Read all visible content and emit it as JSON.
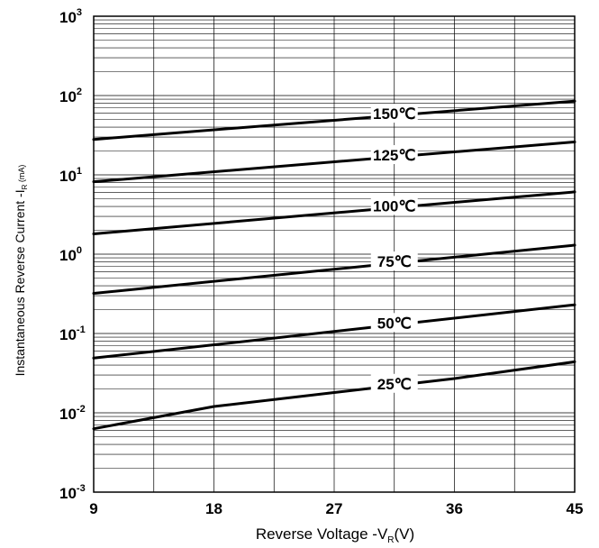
{
  "chart_data": {
    "type": "line",
    "xlabel": {
      "main": "Reverse  Voltage -V",
      "sub": "R",
      "tail": "(V)"
    },
    "ylabel": {
      "main": "Instantaneous Reverse Current -I",
      "sub": "R",
      "tail": " (mA)"
    },
    "xlim": [
      9,
      45
    ],
    "ylim": [
      0.001,
      1000
    ],
    "y_scale": "log",
    "grid": true,
    "x_ticks": [
      {
        "value": 9,
        "label": "9"
      },
      {
        "value": 18,
        "label": "18"
      },
      {
        "value": 27,
        "label": "27"
      },
      {
        "value": 36,
        "label": "36"
      },
      {
        "value": 45,
        "label": "45"
      }
    ],
    "x_minor_grid": [
      13.5,
      22.5,
      31.5,
      40.5
    ],
    "y_ticks": [
      {
        "value": 0.001,
        "base": "10",
        "exp": "-3"
      },
      {
        "value": 0.01,
        "base": "10",
        "exp": "-2"
      },
      {
        "value": 0.1,
        "base": "10",
        "exp": "-1"
      },
      {
        "value": 1,
        "base": "10",
        "exp": "0"
      },
      {
        "value": 10,
        "base": "10",
        "exp": "1"
      },
      {
        "value": 100,
        "base": "10",
        "exp": "2"
      },
      {
        "value": 1000,
        "base": "10",
        "exp": "3"
      }
    ],
    "series": [
      {
        "name": "150℃",
        "x": [
          9,
          45
        ],
        "y": [
          28,
          85
        ],
        "label_x": 31.5
      },
      {
        "name": "125℃",
        "x": [
          9,
          45
        ],
        "y": [
          8.2,
          26
        ],
        "label_x": 31.5
      },
      {
        "name": "100℃",
        "x": [
          9,
          45
        ],
        "y": [
          1.8,
          6.1
        ],
        "label_x": 31.5
      },
      {
        "name": "75℃",
        "x": [
          9,
          45
        ],
        "y": [
          0.32,
          1.3
        ],
        "label_x": 31.5
      },
      {
        "name": "50℃",
        "x": [
          9,
          45
        ],
        "y": [
          0.049,
          0.23
        ],
        "label_x": 31.5
      },
      {
        "name": "25℃",
        "x": [
          9,
          18,
          27,
          36,
          45
        ],
        "y": [
          0.0063,
          0.012,
          0.018,
          0.027,
          0.044
        ],
        "label_x": 31.5
      }
    ]
  }
}
